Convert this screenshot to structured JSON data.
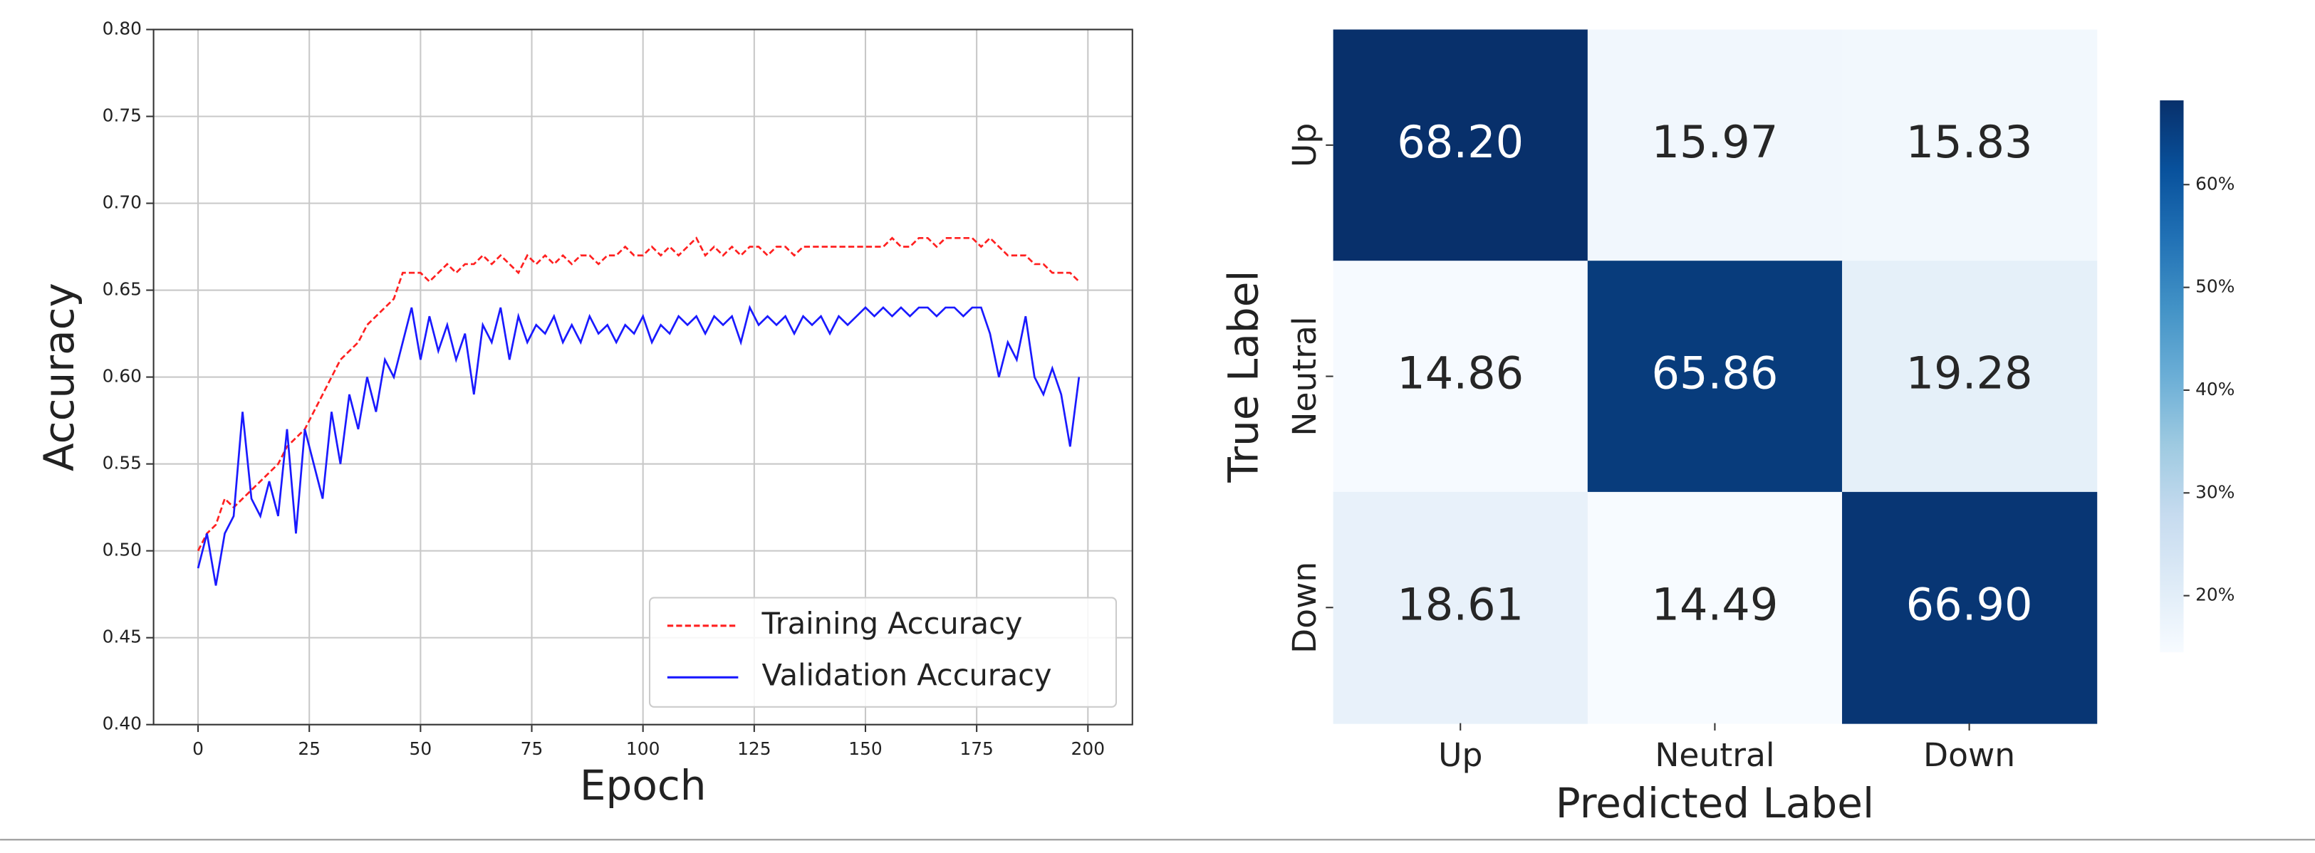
{
  "chart_data": [
    {
      "type": "line",
      "xlabel": "Epoch",
      "ylabel": "Accuracy",
      "x": [
        0,
        2,
        4,
        6,
        8,
        10,
        12,
        14,
        16,
        18,
        20,
        22,
        24,
        26,
        28,
        30,
        32,
        34,
        36,
        38,
        40,
        42,
        44,
        46,
        48,
        50,
        52,
        54,
        56,
        58,
        60,
        62,
        64,
        66,
        68,
        70,
        72,
        74,
        76,
        78,
        80,
        82,
        84,
        86,
        88,
        90,
        92,
        94,
        96,
        98,
        100,
        102,
        104,
        106,
        108,
        110,
        112,
        114,
        116,
        118,
        120,
        122,
        124,
        126,
        128,
        130,
        132,
        134,
        136,
        138,
        140,
        142,
        144,
        146,
        148,
        150,
        152,
        154,
        156,
        158,
        160,
        162,
        164,
        166,
        168,
        170,
        172,
        174,
        176,
        178,
        180,
        182,
        184,
        186,
        188,
        190,
        192,
        194,
        196,
        198
      ],
      "series": [
        {
          "name": "Training Accuracy",
          "color": "#ff2020",
          "linestyle": "dashed",
          "values": [
            0.5,
            0.51,
            0.515,
            0.53,
            0.525,
            0.53,
            0.535,
            0.54,
            0.545,
            0.55,
            0.56,
            0.565,
            0.57,
            0.58,
            0.59,
            0.6,
            0.61,
            0.615,
            0.62,
            0.63,
            0.635,
            0.64,
            0.645,
            0.66,
            0.66,
            0.66,
            0.655,
            0.66,
            0.665,
            0.66,
            0.665,
            0.665,
            0.67,
            0.665,
            0.67,
            0.665,
            0.66,
            0.67,
            0.665,
            0.67,
            0.665,
            0.67,
            0.665,
            0.67,
            0.67,
            0.665,
            0.67,
            0.67,
            0.675,
            0.67,
            0.67,
            0.675,
            0.67,
            0.675,
            0.67,
            0.675,
            0.68,
            0.67,
            0.675,
            0.67,
            0.675,
            0.67,
            0.675,
            0.675,
            0.67,
            0.675,
            0.675,
            0.67,
            0.675,
            0.675,
            0.675,
            0.675,
            0.675,
            0.675,
            0.675,
            0.675,
            0.675,
            0.675,
            0.68,
            0.675,
            0.675,
            0.68,
            0.68,
            0.675,
            0.68,
            0.68,
            0.68,
            0.68,
            0.675,
            0.68,
            0.675,
            0.67,
            0.67,
            0.67,
            0.665,
            0.665,
            0.66,
            0.66,
            0.66,
            0.655
          ]
        },
        {
          "name": "Validation Accuracy",
          "color": "#1a1aff",
          "linestyle": "solid",
          "values": [
            0.49,
            0.51,
            0.48,
            0.51,
            0.52,
            0.58,
            0.53,
            0.52,
            0.54,
            0.52,
            0.57,
            0.51,
            0.57,
            0.55,
            0.53,
            0.58,
            0.55,
            0.59,
            0.57,
            0.6,
            0.58,
            0.61,
            0.6,
            0.62,
            0.64,
            0.61,
            0.635,
            0.615,
            0.63,
            0.61,
            0.625,
            0.59,
            0.63,
            0.62,
            0.64,
            0.61,
            0.635,
            0.62,
            0.63,
            0.625,
            0.635,
            0.62,
            0.63,
            0.62,
            0.635,
            0.625,
            0.63,
            0.62,
            0.63,
            0.625,
            0.635,
            0.62,
            0.63,
            0.625,
            0.635,
            0.63,
            0.635,
            0.625,
            0.635,
            0.63,
            0.635,
            0.62,
            0.64,
            0.63,
            0.635,
            0.63,
            0.635,
            0.625,
            0.635,
            0.63,
            0.635,
            0.625,
            0.635,
            0.63,
            0.635,
            0.64,
            0.635,
            0.64,
            0.635,
            0.64,
            0.635,
            0.64,
            0.64,
            0.635,
            0.64,
            0.64,
            0.635,
            0.64,
            0.64,
            0.625,
            0.6,
            0.62,
            0.61,
            0.635,
            0.6,
            0.59,
            0.605,
            0.59,
            0.56,
            0.6
          ]
        }
      ],
      "xlim": [
        -10,
        210
      ],
      "ylim": [
        0.4,
        0.8
      ],
      "xticks": [
        0,
        25,
        50,
        75,
        100,
        125,
        150,
        175,
        200
      ],
      "yticks": [
        {
          "value": 0.4,
          "label": "0.40"
        },
        {
          "value": 0.45,
          "label": "0.45"
        },
        {
          "value": 0.5,
          "label": "0.50"
        },
        {
          "value": 0.55,
          "label": "0.55"
        },
        {
          "value": 0.6,
          "label": "0.60"
        },
        {
          "value": 0.65,
          "label": "0.65"
        },
        {
          "value": 0.7,
          "label": "0.70"
        },
        {
          "value": 0.75,
          "label": "0.75"
        },
        {
          "value": 0.8,
          "label": "0.80"
        }
      ],
      "grid": true,
      "legend": "lower right"
    },
    {
      "type": "heatmap",
      "xlabel": "Predicted Label",
      "ylabel": "True Label",
      "x_categories": [
        "Up",
        "Neutral",
        "Down"
      ],
      "y_categories": [
        "Up",
        "Neutral",
        "Down"
      ],
      "values": [
        [
          68.2,
          15.97,
          15.83
        ],
        [
          14.86,
          65.86,
          19.28
        ],
        [
          18.61,
          14.49,
          66.9
        ]
      ],
      "value_labels": [
        [
          "68.20",
          "15.97",
          "15.83"
        ],
        [
          "14.86",
          "65.86",
          "19.28"
        ],
        [
          "18.61",
          "14.49",
          "66.90"
        ]
      ],
      "colormap": "Blues",
      "clim": [
        14.49,
        68.2
      ],
      "cticks": [
        {
          "value": 20,
          "label": "20%"
        },
        {
          "value": 30,
          "label": "30%"
        },
        {
          "value": 40,
          "label": "40%"
        },
        {
          "value": 50,
          "label": "50%"
        },
        {
          "value": 60,
          "label": "60%"
        }
      ]
    }
  ]
}
